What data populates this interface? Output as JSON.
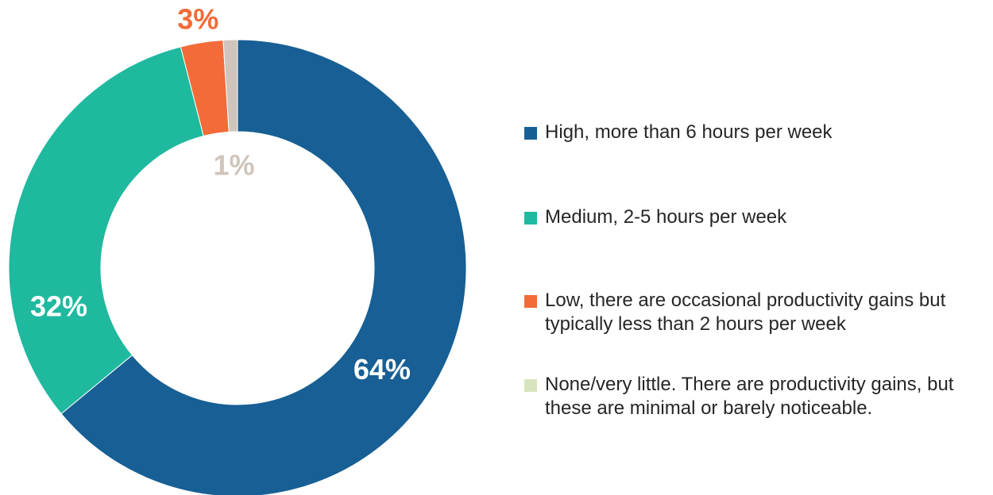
{
  "chart_data": {
    "type": "pie",
    "variant": "donut",
    "slices": [
      {
        "label": "High, more than 6 hours per week",
        "value": 64,
        "value_label": "64%",
        "color": "#175f94",
        "label_color": "#ffffff"
      },
      {
        "label": "Medium, 2-5 hours per week",
        "value": 32,
        "value_label": "32%",
        "color": "#1fb99f",
        "label_color": "#ffffff"
      },
      {
        "label": "Low, there are occasional productivity gains but typically less than 2 hours per week",
        "value": 3,
        "value_label": "3%",
        "color": "#f26b38",
        "label_color": "#f26b38"
      },
      {
        "label": "None/very little. There are productivity gains, but these are minimal or barely noticeable.",
        "value": 1,
        "value_label": "1%",
        "color": "#cfc5bc",
        "label_color": "#cfc5bc"
      }
    ],
    "legend_swatch_colors": [
      "#175f94",
      "#1fb99f",
      "#f26b38",
      "#d7e4bd"
    ],
    "legend_position": "right"
  }
}
